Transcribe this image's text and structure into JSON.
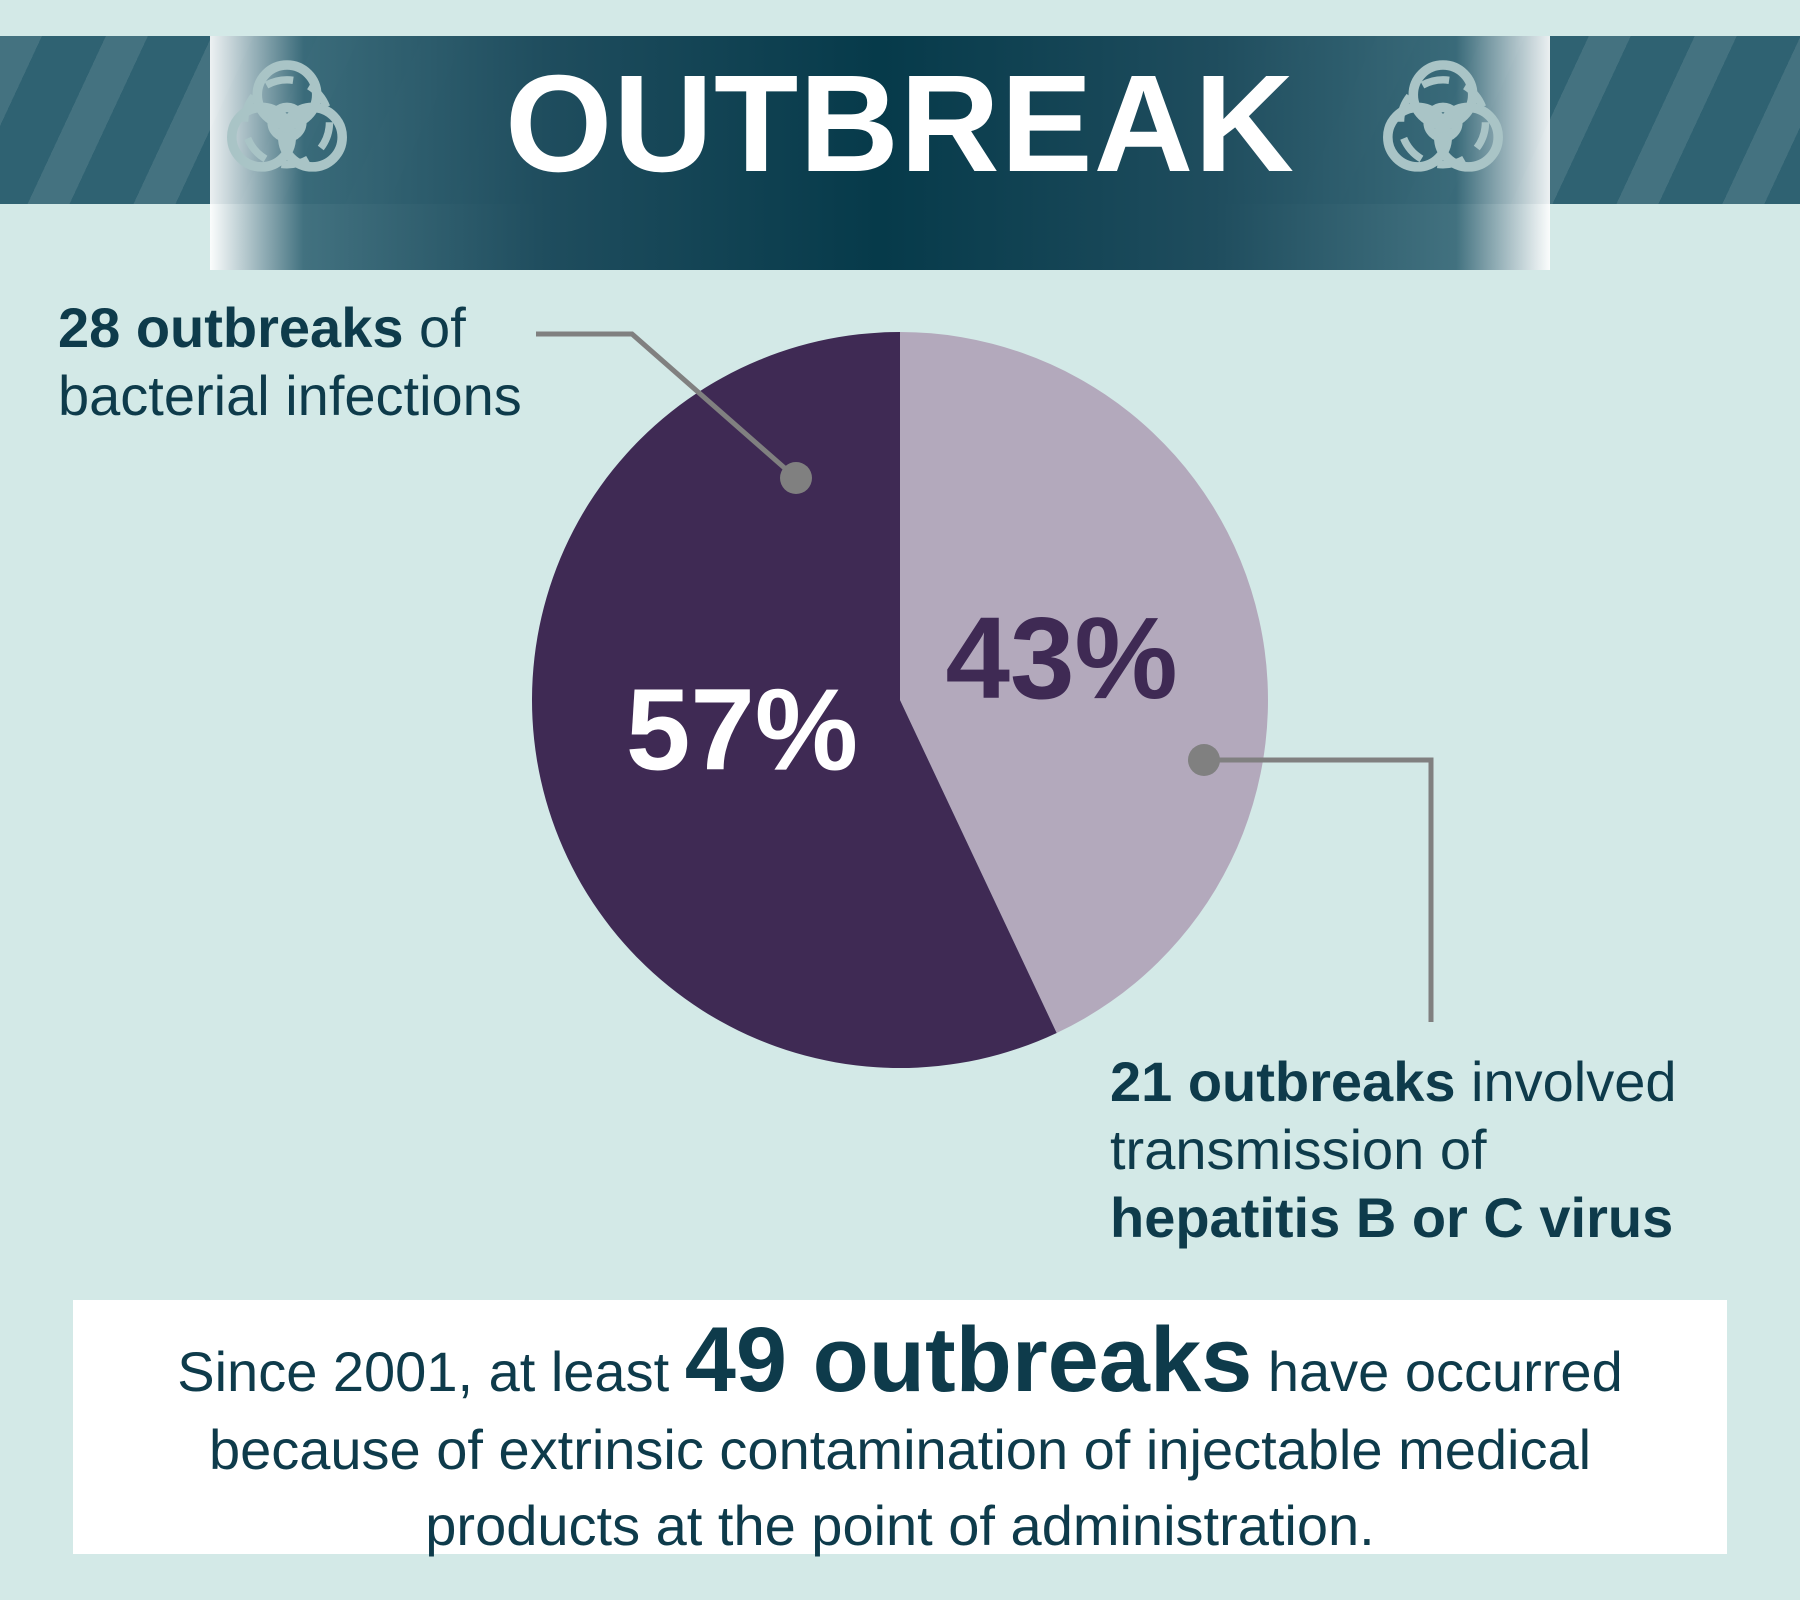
{
  "banner": {
    "title": "OUTBREAK",
    "icon": "biohazard-icon",
    "colors": {
      "dark": "#063a4a",
      "mid": "#2f6272"
    }
  },
  "chart_data": {
    "type": "pie",
    "slices": [
      {
        "label": "57%",
        "value": 57,
        "color": "#3f2a54",
        "label_color": "#ffffff"
      },
      {
        "label": "43%",
        "value": 43,
        "color": "#b3a9bc",
        "label_color": "#3f2a54"
      }
    ]
  },
  "callouts": {
    "bacterial": {
      "strong": "28 outbreaks",
      "rest": " of",
      "line2": "bacterial infections"
    },
    "hepatitis": {
      "strong": "21 outbreaks",
      "rest": " involved",
      "line2": "transmission of",
      "line3": "hepatitis B or C virus"
    }
  },
  "summary": {
    "lead": "Since 2001, at least ",
    "emphasis": "49 outbreaks",
    "tail": " have occurred",
    "line2": "because of extrinsic contamination of injectable medical",
    "line3": "products at the point of administration."
  },
  "colors": {
    "background": "#d3e9e7",
    "text": "#0e3b4b",
    "leader": "#808080",
    "summary_bg": "#ffffff"
  }
}
